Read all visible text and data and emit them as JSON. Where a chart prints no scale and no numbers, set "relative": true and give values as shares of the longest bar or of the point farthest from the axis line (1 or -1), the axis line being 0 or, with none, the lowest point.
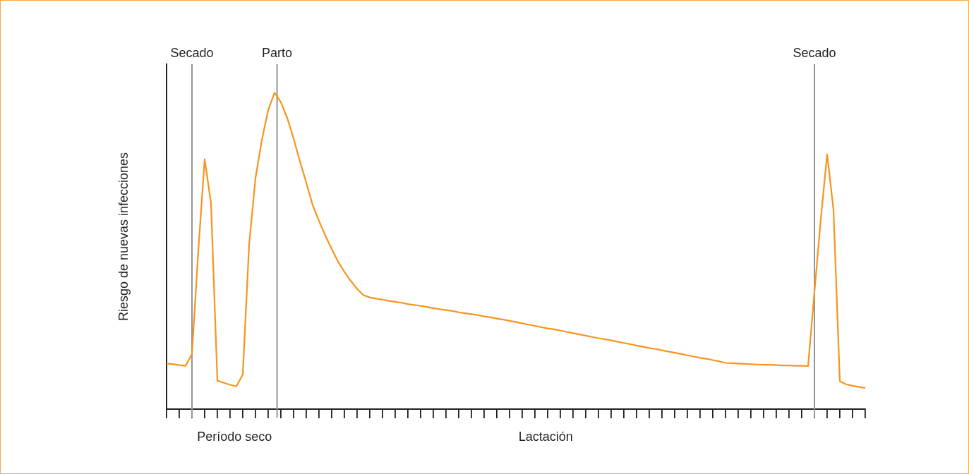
{
  "chart_data": {
    "type": "line",
    "relative": true,
    "ylabel": "Riesgo de nuevas infecciones",
    "categories": [
      null,
      null,
      null,
      null,
      null,
      null,
      null,
      null,
      null,
      null,
      null,
      null,
      null,
      null,
      null,
      null,
      null,
      null,
      null,
      null,
      null,
      null,
      null,
      null,
      null,
      null,
      null,
      null,
      null,
      null,
      null,
      null,
      null,
      null,
      null,
      null,
      null,
      null,
      null,
      null,
      null,
      null,
      null,
      null,
      null,
      null,
      null,
      null,
      null,
      null,
      null,
      null,
      null,
      null,
      null,
      null,
      null,
      null,
      null,
      null,
      null,
      null,
      null,
      null,
      null,
      null,
      null,
      null,
      null,
      null,
      null,
      null,
      null,
      null,
      null,
      null,
      null,
      null,
      null,
      null,
      null,
      null,
      null,
      null,
      null,
      null,
      null,
      null,
      null,
      null,
      null,
      null,
      null,
      null,
      null,
      null,
      null,
      null,
      null,
      null,
      null,
      null,
      null,
      null,
      null,
      null,
      null,
      null,
      null,
      null,
      null
    ],
    "series": [
      {
        "color": "#f7941d",
        "values": [
          0.144,
          0.142,
          0.139,
          0.137,
          0.174,
          0.5,
          0.79,
          0.65,
          0.09,
          0.083,
          0.077,
          0.072,
          0.11,
          0.52,
          0.73,
          0.85,
          0.945,
          1,
          0.97,
          0.92,
          0.855,
          0.783,
          0.715,
          0.645,
          0.595,
          0.548,
          0.506,
          0.466,
          0.434,
          0.405,
          0.38,
          0.36,
          0.353,
          0.349,
          0.346,
          0.342,
          0.339,
          0.336,
          0.332,
          0.329,
          0.326,
          0.323,
          0.319,
          0.316,
          0.313,
          0.31,
          0.306,
          0.303,
          0.3,
          0.297,
          0.293,
          0.29,
          0.286,
          0.283,
          0.279,
          0.275,
          0.271,
          0.267,
          0.263,
          0.259,
          0.255,
          0.252,
          0.248,
          0.244,
          0.24,
          0.236,
          0.232,
          0.228,
          0.224,
          0.221,
          0.217,
          0.213,
          0.209,
          0.205,
          0.201,
          0.197,
          0.193,
          0.19,
          0.186,
          0.182,
          0.178,
          0.174,
          0.17,
          0.166,
          0.162,
          0.159,
          0.155,
          0.151,
          0.146,
          0.145,
          0.144,
          0.143,
          0.142,
          0.141,
          0.14,
          0.14,
          0.139,
          0.138,
          0.138,
          0.137,
          0.137,
          0.136,
          0.37,
          0.6,
          0.805,
          0.63,
          0.088,
          0.078,
          0.074,
          0.07,
          0.067
        ]
      }
    ],
    "marker": "none",
    "line_style": "solid",
    "grid": false,
    "annotations": [
      "Secado",
      "Parto",
      "Secado",
      "Período seco",
      "Lactación"
    ]
  }
}
